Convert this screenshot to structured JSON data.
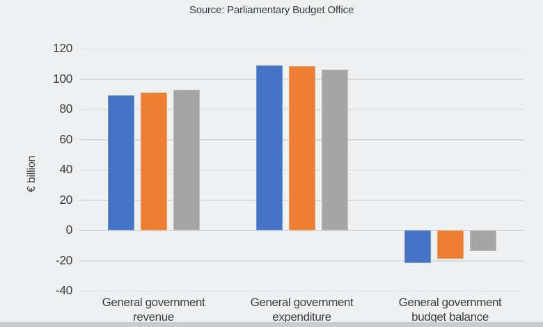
{
  "chart_data": {
    "type": "bar",
    "title": "Source: Parliamentary Budget Office",
    "xlabel": "",
    "ylabel": "€ billion",
    "categories": [
      "General government revenue",
      "General government expenditure",
      "General government budget balance"
    ],
    "series": [
      {
        "name": "blue",
        "color": "#4472c4",
        "border_color": "#7496d4",
        "values": [
          89,
          109,
          -21.5
        ]
      },
      {
        "name": "orange",
        "color": "#ed7d31",
        "border_color": "#f2a069",
        "values": [
          91,
          108.5,
          -19
        ]
      },
      {
        "name": "grey",
        "color": "#a5a5a5",
        "border_color": "#c0c0c0",
        "values": [
          93,
          106,
          -14
        ]
      }
    ],
    "ylim": [
      -40,
      120
    ],
    "ytick_step": 20,
    "yticks": [
      120,
      100,
      80,
      60,
      40,
      20,
      0,
      -20,
      -40
    ],
    "grid": true,
    "legend": "none"
  },
  "colors": {
    "background": "#eef0f2",
    "gridline": "#d8dbdd",
    "zero_line": "#ced1d4",
    "text": "#3d3d3d",
    "bottom_strip": "#c9ccce"
  }
}
